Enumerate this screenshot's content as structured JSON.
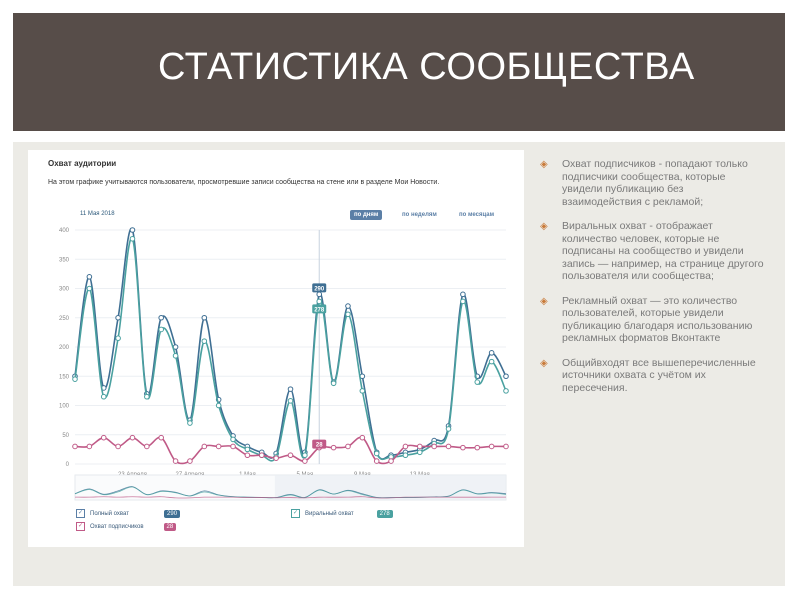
{
  "slide": {
    "title": "СТАТИСТИКА СООБЩЕСТВА"
  },
  "panel": {
    "title": "Охват аудитории",
    "description": "На этом графике учитываются пользователи, просмотревшие записи сообщества на стене или в разделе Мои Новости.",
    "date_label": "11 Мая 2018",
    "buttons": [
      "по дням",
      "по неделям",
      "по месяцам"
    ],
    "active_button": "по дням"
  },
  "chart_data": {
    "type": "line",
    "y_ticks": [
      "400",
      "350",
      "300",
      "250",
      "200",
      "150",
      "100",
      "50",
      "0"
    ],
    "ylim": [
      0,
      400
    ],
    "x_tick_labels": [
      {
        "label": "23 Апреля",
        "index": 4
      },
      {
        "label": "27 Апреля",
        "index": 8
      },
      {
        "label": "1 Мая",
        "index": 12
      },
      {
        "label": "5 Мая",
        "index": 16
      },
      {
        "label": "9 Мая",
        "index": 20
      },
      {
        "label": "13 Мая",
        "index": 24
      }
    ],
    "series": [
      {
        "name": "Полный охват",
        "color": "#3f6f93",
        "values": [
          150,
          320,
          130,
          250,
          400,
          120,
          250,
          200,
          75,
          250,
          110,
          48,
          30,
          20,
          18,
          128,
          20,
          290,
          140,
          270,
          150,
          20,
          15,
          20,
          25,
          40,
          65,
          290,
          150,
          190,
          150
        ]
      },
      {
        "name": "Виральный охват",
        "color": "#4aa1a0",
        "values": [
          145,
          300,
          115,
          215,
          385,
          115,
          230,
          185,
          70,
          210,
          100,
          42,
          25,
          15,
          12,
          108,
          15,
          278,
          138,
          256,
          125,
          18,
          12,
          15,
          20,
          35,
          60,
          278,
          140,
          175,
          125
        ]
      },
      {
        "name": "Охват подписчиков",
        "color": "#c05a87",
        "values": [
          30,
          30,
          45,
          30,
          45,
          30,
          45,
          5,
          5,
          30,
          30,
          30,
          15,
          15,
          10,
          15,
          5,
          28,
          28,
          30,
          45,
          5,
          5,
          30,
          30,
          30,
          30,
          28,
          28,
          30,
          30
        ]
      }
    ],
    "highlight": {
      "index": 17,
      "labels": [
        "290",
        "278",
        "28"
      ]
    }
  },
  "legend": {
    "items": [
      {
        "label": "Полный охват",
        "value": "290",
        "color": "#3f6f93"
      },
      {
        "label": "Охват подписчиков",
        "value": "28",
        "color": "#c05a87"
      },
      {
        "label": "Виральный охват",
        "value": "278",
        "color": "#4aa1a0"
      }
    ]
  },
  "bullets": [
    "Охват подписчиков - попадают только подписчики сообщества, которые увидели публикацию без взаимодействия с рекламой;",
    "Виральных охват - отображает количество человек, которые не подписаны на сообщество и увидели запись — например, на странице другого пользователя или сообщества;",
    "Рекламный охват — это количество пользователей, которые увидели публикацию благодаря использованию рекламных форматов Вконтакте",
    "Общийвходят все вышеперечисленные источники охвата с учётом их пересечения."
  ],
  "bullet_marker": "◈"
}
